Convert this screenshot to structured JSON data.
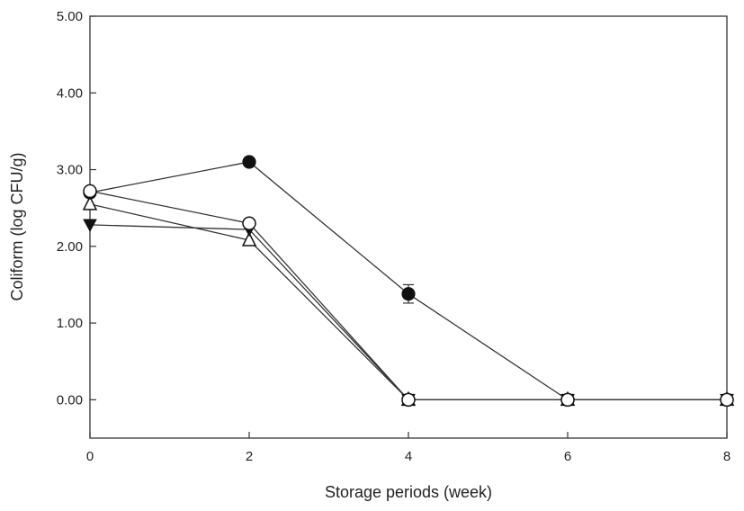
{
  "chart_data": {
    "type": "line",
    "title": "",
    "xlabel": "Storage periods (week)",
    "ylabel": "Coliform (log CFU/g)",
    "xlim": [
      0,
      8
    ],
    "ylim": [
      -0.5,
      5.0
    ],
    "xticks": [
      0,
      2,
      4,
      6,
      8
    ],
    "xtick_labels": [
      "0",
      "2",
      "4",
      "6",
      "8"
    ],
    "yticks": [
      0,
      1,
      2,
      3,
      4,
      5
    ],
    "ytick_labels": [
      "0.00",
      "1.00",
      "2.00",
      "3.00",
      "4.00",
      "5.00"
    ],
    "grid": false,
    "legend": "none",
    "series": [
      {
        "marker": "filled-circle",
        "x": [
          0,
          2,
          4,
          6,
          8
        ],
        "y": [
          2.7,
          3.1,
          1.38,
          0.0,
          0.0
        ],
        "error": [
          0,
          0,
          0.12,
          0,
          0
        ]
      },
      {
        "marker": "open-circle",
        "x": [
          0,
          2,
          4,
          6,
          8
        ],
        "y": [
          2.72,
          2.3,
          0.0,
          0.0,
          0.0
        ]
      },
      {
        "marker": "filled-triangle-down",
        "x": [
          0,
          2,
          4,
          6,
          8
        ],
        "y": [
          2.28,
          2.22,
          0.0,
          0.0,
          0.0
        ]
      },
      {
        "marker": "open-triangle-up",
        "x": [
          0,
          2,
          4,
          6,
          8
        ],
        "y": [
          2.55,
          2.08,
          0.0,
          0.0,
          0.0
        ]
      }
    ]
  }
}
